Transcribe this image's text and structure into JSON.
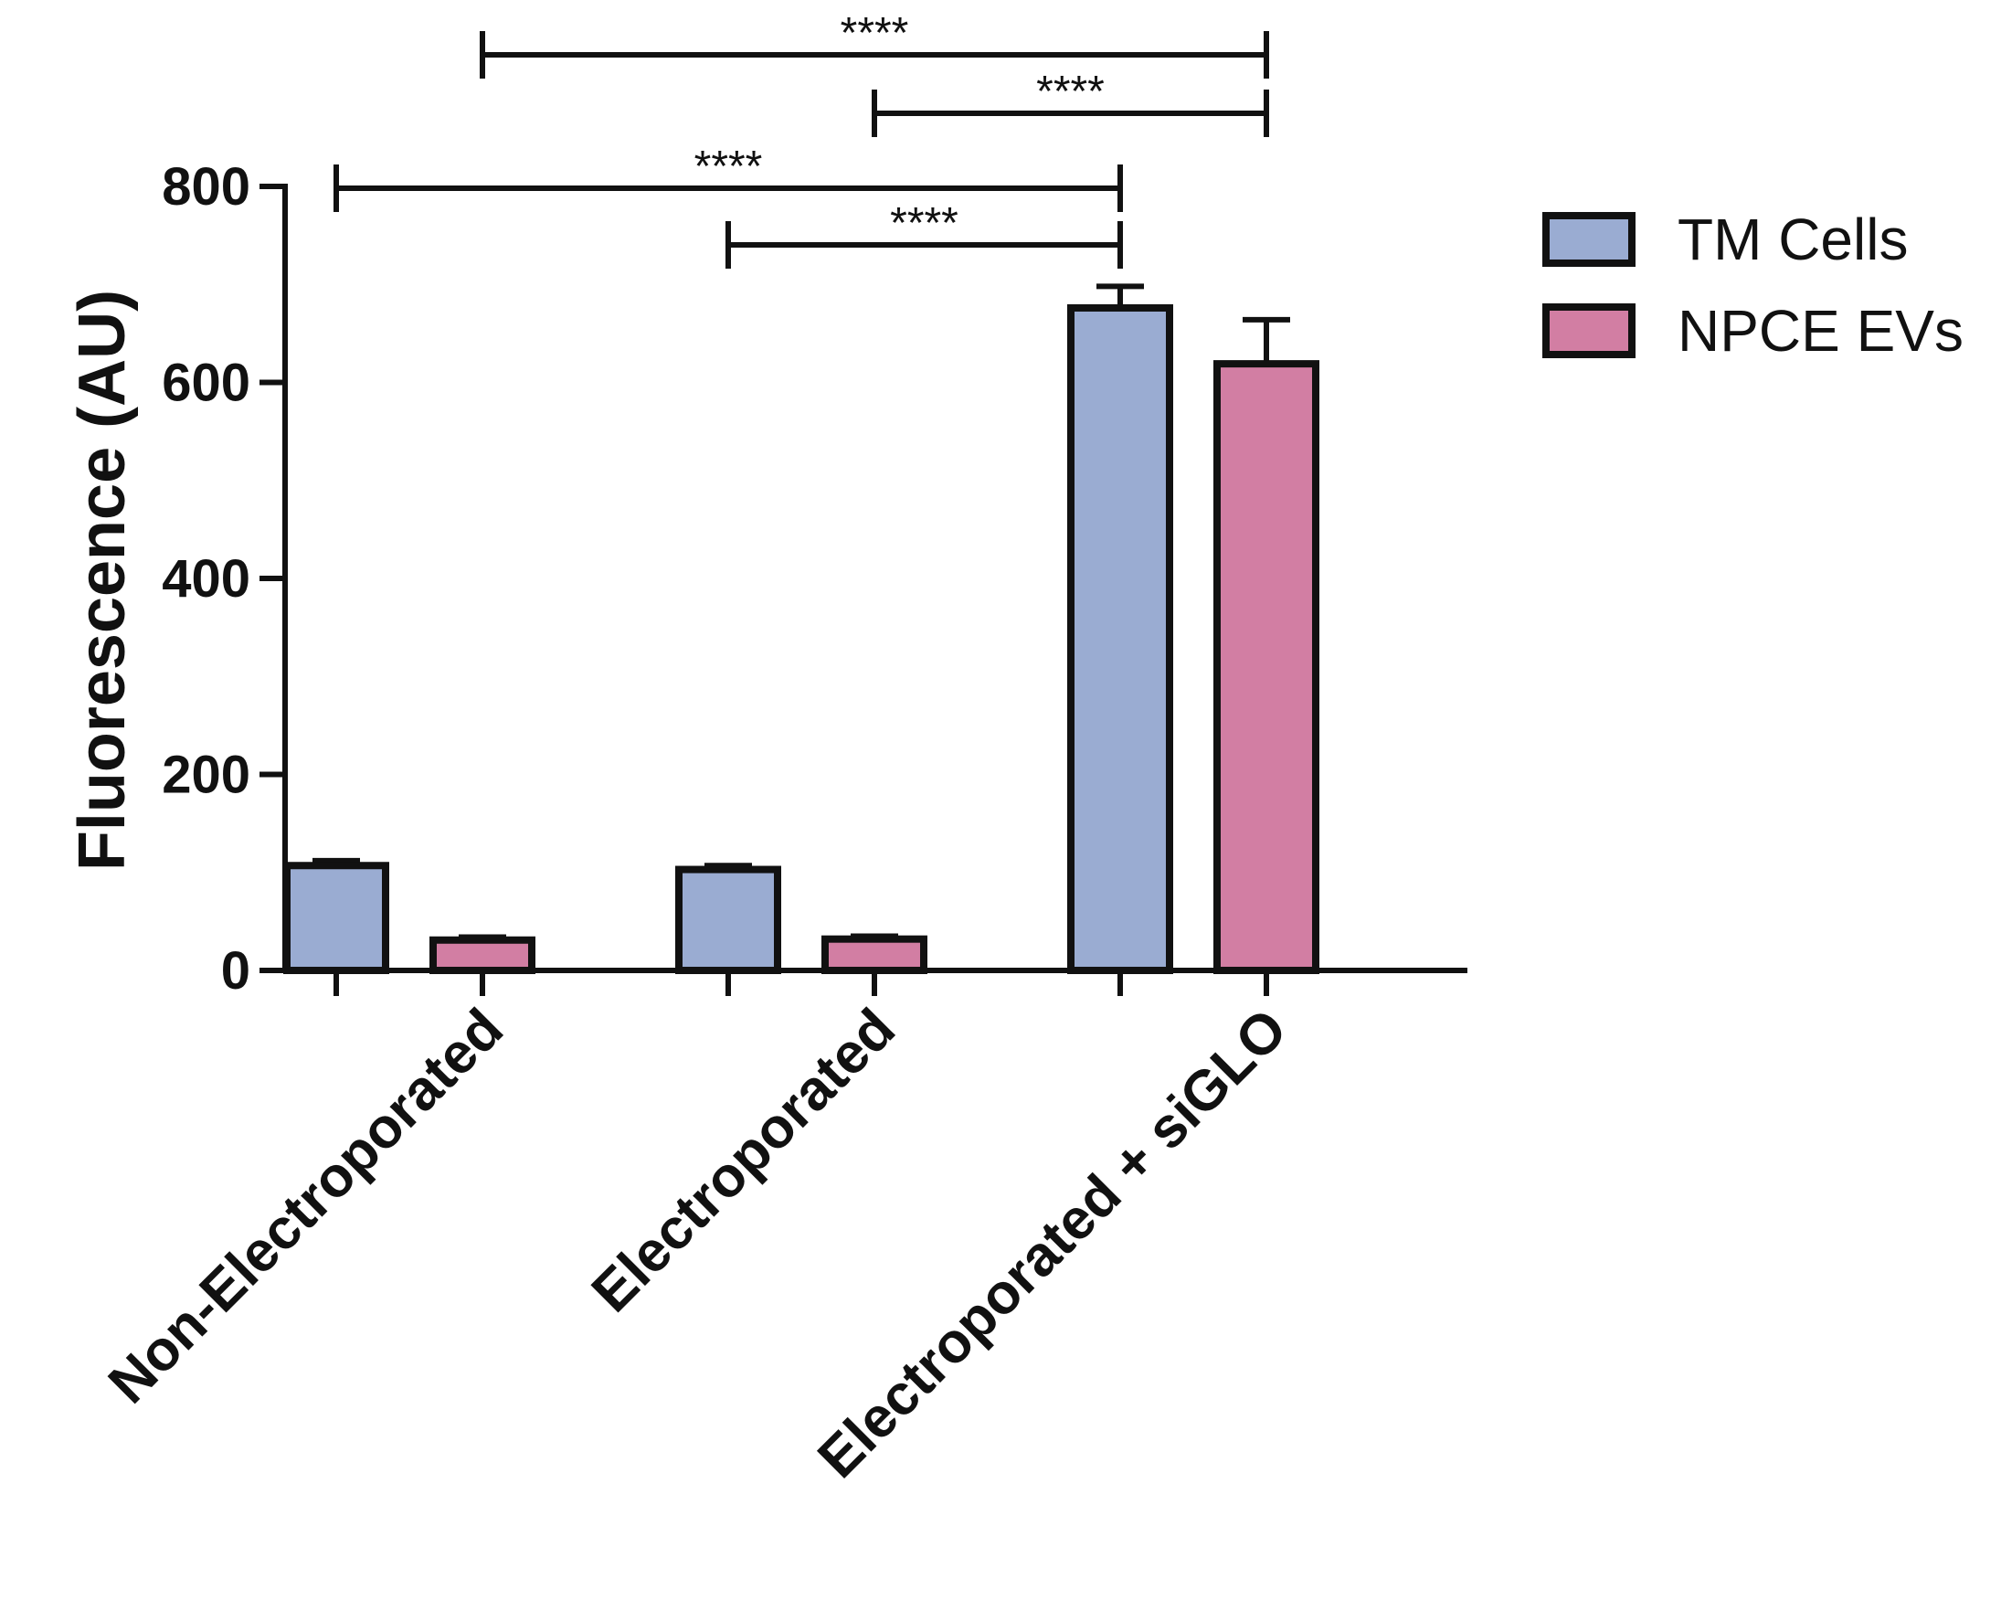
{
  "chart_data": {
    "type": "bar",
    "ylabel": "Fluorescence (AU)",
    "ylim": [
      0,
      800
    ],
    "yticks": [
      "0",
      "200",
      "400",
      "600",
      "800"
    ],
    "categories": [
      "Non-Electroporated",
      "Electroporated",
      "Electroporated + siGLO"
    ],
    "series": [
      {
        "name": "TM Cells",
        "color": "#9aacd2",
        "values": [
          107,
          103,
          676
        ],
        "errors": [
          5,
          4,
          22
        ]
      },
      {
        "name": "NPCE EVs",
        "color": "#d27ea3",
        "values": [
          31,
          32,
          619
        ],
        "errors": [
          3,
          3,
          45
        ]
      }
    ],
    "significance": [
      {
        "label": "****",
        "from": [
          0,
          1
        ],
        "to": [
          2,
          1
        ]
      },
      {
        "label": "****",
        "from": [
          1,
          1
        ],
        "to": [
          2,
          1
        ]
      },
      {
        "label": "****",
        "from": [
          0,
          0
        ],
        "to": [
          2,
          0
        ]
      },
      {
        "label": "****",
        "from": [
          1,
          0
        ],
        "to": [
          2,
          0
        ]
      }
    ],
    "legend_position": "top-right",
    "grid": false
  }
}
